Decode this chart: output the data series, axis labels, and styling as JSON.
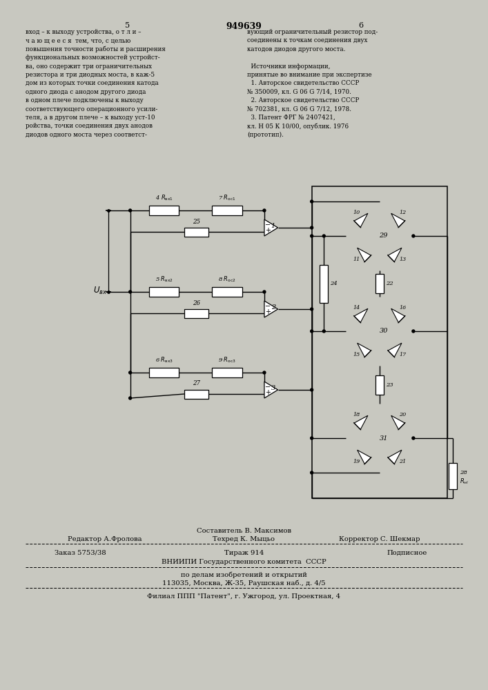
{
  "bg_color": "#e0e0d8",
  "title": "949639",
  "page_left": "5",
  "page_right": "6",
  "text_left_lines": [
    "вход – к выходу устройства, о т л и –",
    "ч а ю щ е е с я  тем, что, с целью",
    "повышения точности работы и расширения",
    "функциональных возможностей устройст-",
    "ва, оно содержит три ограничительных",
    "резистора и три диодных моста, в каж-5",
    "дом из которых точки соединения катода",
    "одного диода с анодом другого диода",
    "в одном плече подключены к выходу",
    "соответствующего операционного усили-",
    "теля, а в другом плече – к выходу уст-10",
    "ройства, точки соединения двух анодов",
    "диодов одного моста через соответст-"
  ],
  "text_right_lines": [
    "вующий ограничительный резистор под-",
    "соединены к точкам соединения двух",
    "катодов диодов другого моста.",
    "",
    "  Источники информации,",
    "принятые во внимание при экспертизе",
    "  1. Авторское свидетельство СССР",
    "№ 350009, кл. G 06 G 7/14, 1970.",
    "  2. Авторское свидетельство СССР",
    "№ 702381, кл. G 06 G 7/12, 1978.",
    "  3. Патент ФРГ № 2407421,",
    "кл. Н 05 К 10/00, опублик. 1976",
    "(прототип)."
  ],
  "footer_editor": "Редактор А.Фролова",
  "footer_comp1": "Составитель В. Максимов",
  "footer_comp2": "Техред К. Мыцьо",
  "footer_corrector": "Корректор С. Шекмар",
  "footer_order": "Заказ 5753/38",
  "footer_print": "Тираж 914",
  "footer_sub": "Подписное",
  "footer_org1": "ВНИИПИ Государственного комитета  СССР",
  "footer_org2": "по делам изобретений и открытий",
  "footer_org3": "113035, Москва, Ж-35, Раушская наб., д. 4/5",
  "footer_branch": "Филиал ППП \"Патент\", г. Ужгород, ул. Проектная, 4"
}
